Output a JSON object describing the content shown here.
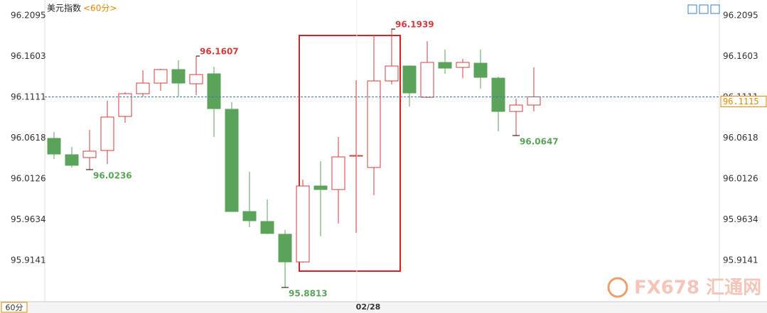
{
  "chart_data": {
    "type": "candlestick",
    "title": "美元指数",
    "subtitle": "<60分>",
    "period_label": "60分",
    "watermark": "FX678 汇通网",
    "categories": [
      null,
      null,
      null,
      null,
      null,
      null,
      null,
      null,
      null,
      null,
      null,
      null,
      null,
      null,
      null,
      null,
      null,
      "02/28",
      null,
      null,
      null,
      null,
      null,
      null,
      null,
      null,
      null,
      null
    ],
    "open": [
      96.0614,
      96.0417,
      96.0383,
      96.0468,
      96.0879,
      96.1153,
      96.1281,
      96.1444,
      96.1273,
      96.1393,
      96.0965,
      95.9732,
      95.9612,
      95.9458,
      95.9124,
      96.004,
      95.9997,
      96.0408,
      96.0263,
      96.1307,
      96.1487,
      96.111,
      96.153,
      96.147,
      96.1521,
      96.1341,
      96.0939,
      96.1016
    ],
    "high": [
      96.0691,
      96.0511,
      96.0717,
      96.1067,
      96.117,
      96.1436,
      96.1453,
      96.1555,
      96.1607,
      96.1478,
      96.105,
      96.0211,
      95.9878,
      95.951,
      96.0117,
      96.034,
      96.0631,
      96.1316,
      96.1864,
      96.1939,
      96.1495,
      96.1787,
      96.1684,
      96.1573,
      96.1684,
      96.1359,
      96.1093,
      96.147
    ],
    "low": [
      96.0366,
      96.0263,
      96.0236,
      96.0306,
      96.0802,
      96.1119,
      96.1187,
      96.1119,
      96.1136,
      96.0631,
      95.9732,
      95.9544,
      95.9458,
      95.8813,
      95.9116,
      95.9433,
      95.9587,
      95.9475,
      95.9929,
      96.1264,
      96.0999,
      96.1102,
      96.1393,
      96.1341,
      96.1213,
      96.0699,
      96.0647,
      96.0939
    ],
    "close": [
      96.0425,
      96.0289,
      96.046,
      96.0871,
      96.1153,
      96.1281,
      96.1444,
      96.1281,
      96.1384,
      96.0973,
      95.9732,
      95.9621,
      95.9467,
      95.9124,
      96.004,
      95.9997,
      96.0391,
      96.0408,
      96.1307,
      96.1487,
      96.1162,
      96.153,
      96.1461,
      96.153,
      96.135,
      96.0939,
      96.1016,
      96.1115
    ],
    "up_color": "#d23c3c",
    "down_color": "#5ba35b",
    "ylim": [
      95.8645,
      96.2283
    ],
    "yticks": [
      95.9141,
      95.9634,
      96.0126,
      96.0618,
      96.1111,
      96.1603,
      96.2095
    ]
  }
}
